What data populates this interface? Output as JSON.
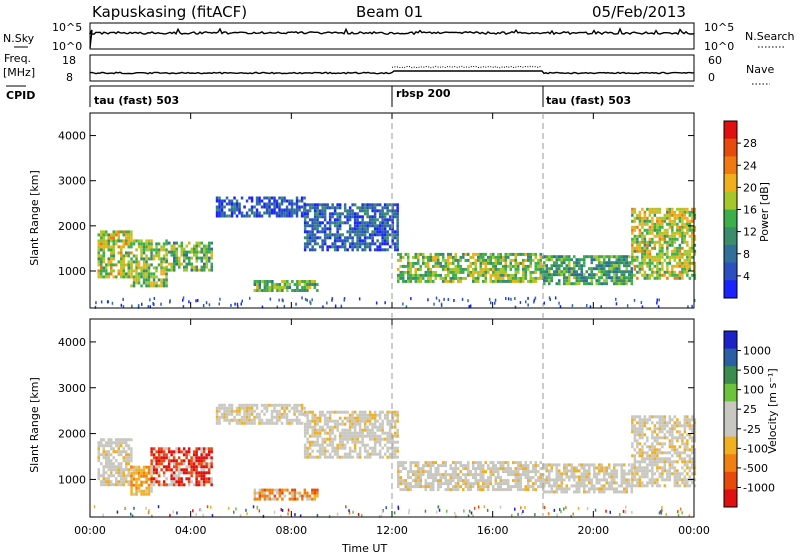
{
  "header": {
    "station": "Kapuskasing (fitACF)",
    "beam": "Beam 01",
    "date": "05/Feb/2013"
  },
  "panels": {
    "sky_label": "N.Sky",
    "search_label": "N.Search",
    "sky_ticks": [
      "10^5",
      "10^0"
    ],
    "search_ticks": [
      "10^5",
      "10^0"
    ],
    "freq_label_top": "Freq.",
    "freq_label_unit": "[MHz]",
    "freq_ticks": [
      "18",
      "8"
    ],
    "nave_label": "Nave",
    "nave_ticks": [
      "60",
      "0"
    ],
    "cpid_label": "CPID"
  },
  "cpid_segments": [
    {
      "label": "tau (fast) 503",
      "start_hour": 0
    },
    {
      "label": "rbsp 200",
      "start_hour": 12
    },
    {
      "label": "tau (fast) 503",
      "start_hour": 18
    }
  ],
  "colors": {
    "power": [
      "#1a22ff",
      "#2a4fc0",
      "#2f6f9a",
      "#3a8d6c",
      "#3caf4a",
      "#a6c72a",
      "#f0b01c",
      "#f07a10",
      "#e84a0c",
      "#e01010"
    ],
    "velocity": [
      "#e01010",
      "#e84a0c",
      "#f08010",
      "#f0b020",
      "#c8c8c0",
      "#c8c8c0",
      "#6cc43a",
      "#3a8d4c",
      "#2a5fa6",
      "#1a22c8"
    ]
  },
  "chart_data": [
    {
      "type": "heatmap",
      "name": "power",
      "xlabel": "",
      "ylabel": "Slant Range [km]",
      "x_ticks": [
        "00:00",
        "04:00",
        "08:00",
        "12:00",
        "16:00",
        "20:00",
        "00:00"
      ],
      "xlim_hours": [
        0,
        24
      ],
      "ylim_km": [
        180,
        4500
      ],
      "y_ticks": [
        1000,
        2000,
        3000,
        4000
      ],
      "colorbar_label": "Power [dB]",
      "colorbar_ticks": [
        "28",
        "24",
        "20",
        "16",
        "12",
        "8",
        "4"
      ],
      "regions": [
        {
          "t0": 0.3,
          "t1": 1.6,
          "r0": 900,
          "r1": 1900,
          "level": 0.55
        },
        {
          "t0": 1.6,
          "t1": 3.0,
          "r0": 700,
          "r1": 1700,
          "level": 0.5
        },
        {
          "t0": 3.0,
          "t1": 4.8,
          "r0": 1000,
          "r1": 1650,
          "level": 0.45
        },
        {
          "t0": 6.5,
          "t1": 9.0,
          "r0": 560,
          "r1": 800,
          "level": 0.45
        },
        {
          "t0": 5.0,
          "t1": 8.5,
          "r0": 2200,
          "r1": 2650,
          "level": 0.15
        },
        {
          "t0": 8.5,
          "t1": 12.2,
          "r0": 1500,
          "r1": 2500,
          "level": 0.2
        },
        {
          "t0": 12.2,
          "t1": 18.0,
          "r0": 800,
          "r1": 1400,
          "level": 0.5
        },
        {
          "t0": 18.0,
          "t1": 21.5,
          "r0": 700,
          "r1": 1350,
          "level": 0.4
        },
        {
          "t0": 21.5,
          "t1": 24.0,
          "r0": 850,
          "r1": 2400,
          "level": 0.55
        }
      ]
    },
    {
      "type": "heatmap",
      "name": "velocity",
      "xlabel": "Time UT",
      "ylabel": "Slant Range [km]",
      "x_ticks": [
        "00:00",
        "04:00",
        "08:00",
        "12:00",
        "16:00",
        "20:00",
        "00:00"
      ],
      "xlim_hours": [
        0,
        24
      ],
      "ylim_km": [
        180,
        4500
      ],
      "y_ticks": [
        1000,
        2000,
        3000,
        4000
      ],
      "colorbar_label": "Velocity [m s⁻¹]",
      "colorbar_ticks": [
        "1000",
        "500",
        "100",
        "25",
        "-25",
        "-100",
        "-500",
        "-1000"
      ],
      "regions": [
        {
          "t0": 0.3,
          "t1": 1.6,
          "r0": 900,
          "r1": 1900,
          "level": 0.45
        },
        {
          "t0": 1.6,
          "t1": 2.4,
          "r0": 700,
          "r1": 1300,
          "level": 0.35
        },
        {
          "t0": 2.4,
          "t1": 4.8,
          "r0": 850,
          "r1": 1700,
          "level": 0.1
        },
        {
          "t0": 6.5,
          "t1": 9.0,
          "r0": 560,
          "r1": 800,
          "level": 0.25
        },
        {
          "t0": 5.0,
          "t1": 8.5,
          "r0": 2200,
          "r1": 2650,
          "level": 0.45
        },
        {
          "t0": 8.5,
          "t1": 12.2,
          "r0": 1500,
          "r1": 2500,
          "level": 0.45
        },
        {
          "t0": 12.2,
          "t1": 18.0,
          "r0": 800,
          "r1": 1400,
          "level": 0.45
        },
        {
          "t0": 18.0,
          "t1": 21.5,
          "r0": 700,
          "r1": 1350,
          "level": 0.45
        },
        {
          "t0": 21.5,
          "t1": 24.0,
          "r0": 850,
          "r1": 2400,
          "level": 0.45
        }
      ]
    }
  ]
}
